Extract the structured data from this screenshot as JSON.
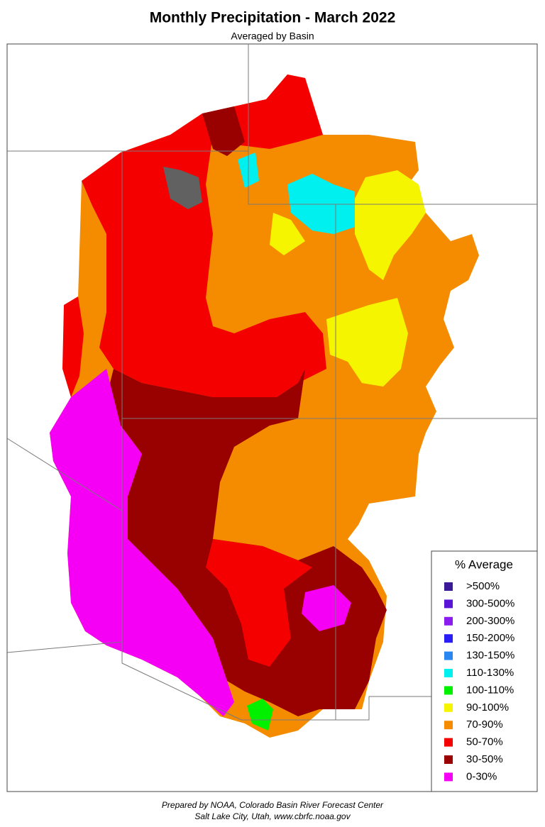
{
  "header": {
    "title": "Monthly Precipitation - March 2022",
    "subtitle": "Averaged by Basin"
  },
  "legend": {
    "title": "% Average",
    "items": [
      {
        "label": ">500%",
        "color": "#3b1a99"
      },
      {
        "label": "300-500%",
        "color": "#5a14d8"
      },
      {
        "label": "200-300%",
        "color": "#8a1cf0"
      },
      {
        "label": "150-200%",
        "color": "#2a1cf5"
      },
      {
        "label": "130-150%",
        "color": "#2a86f0"
      },
      {
        "label": "110-130%",
        "color": "#00f0f0"
      },
      {
        "label": "100-110%",
        "color": "#00f000"
      },
      {
        "label": "90-100%",
        "color": "#f5f500"
      },
      {
        "label": "70-90%",
        "color": "#f58c00"
      },
      {
        "label": "50-70%",
        "color": "#f50000"
      },
      {
        "label": "30-50%",
        "color": "#990000"
      },
      {
        "label": "0-30%",
        "color": "#f500f5"
      }
    ]
  },
  "footer": {
    "line1": "Prepared by NOAA, Colorado Basin River Forecast Center",
    "line2": "Salt Lake City, Utah, www.cbrfc.noaa.gov"
  }
}
